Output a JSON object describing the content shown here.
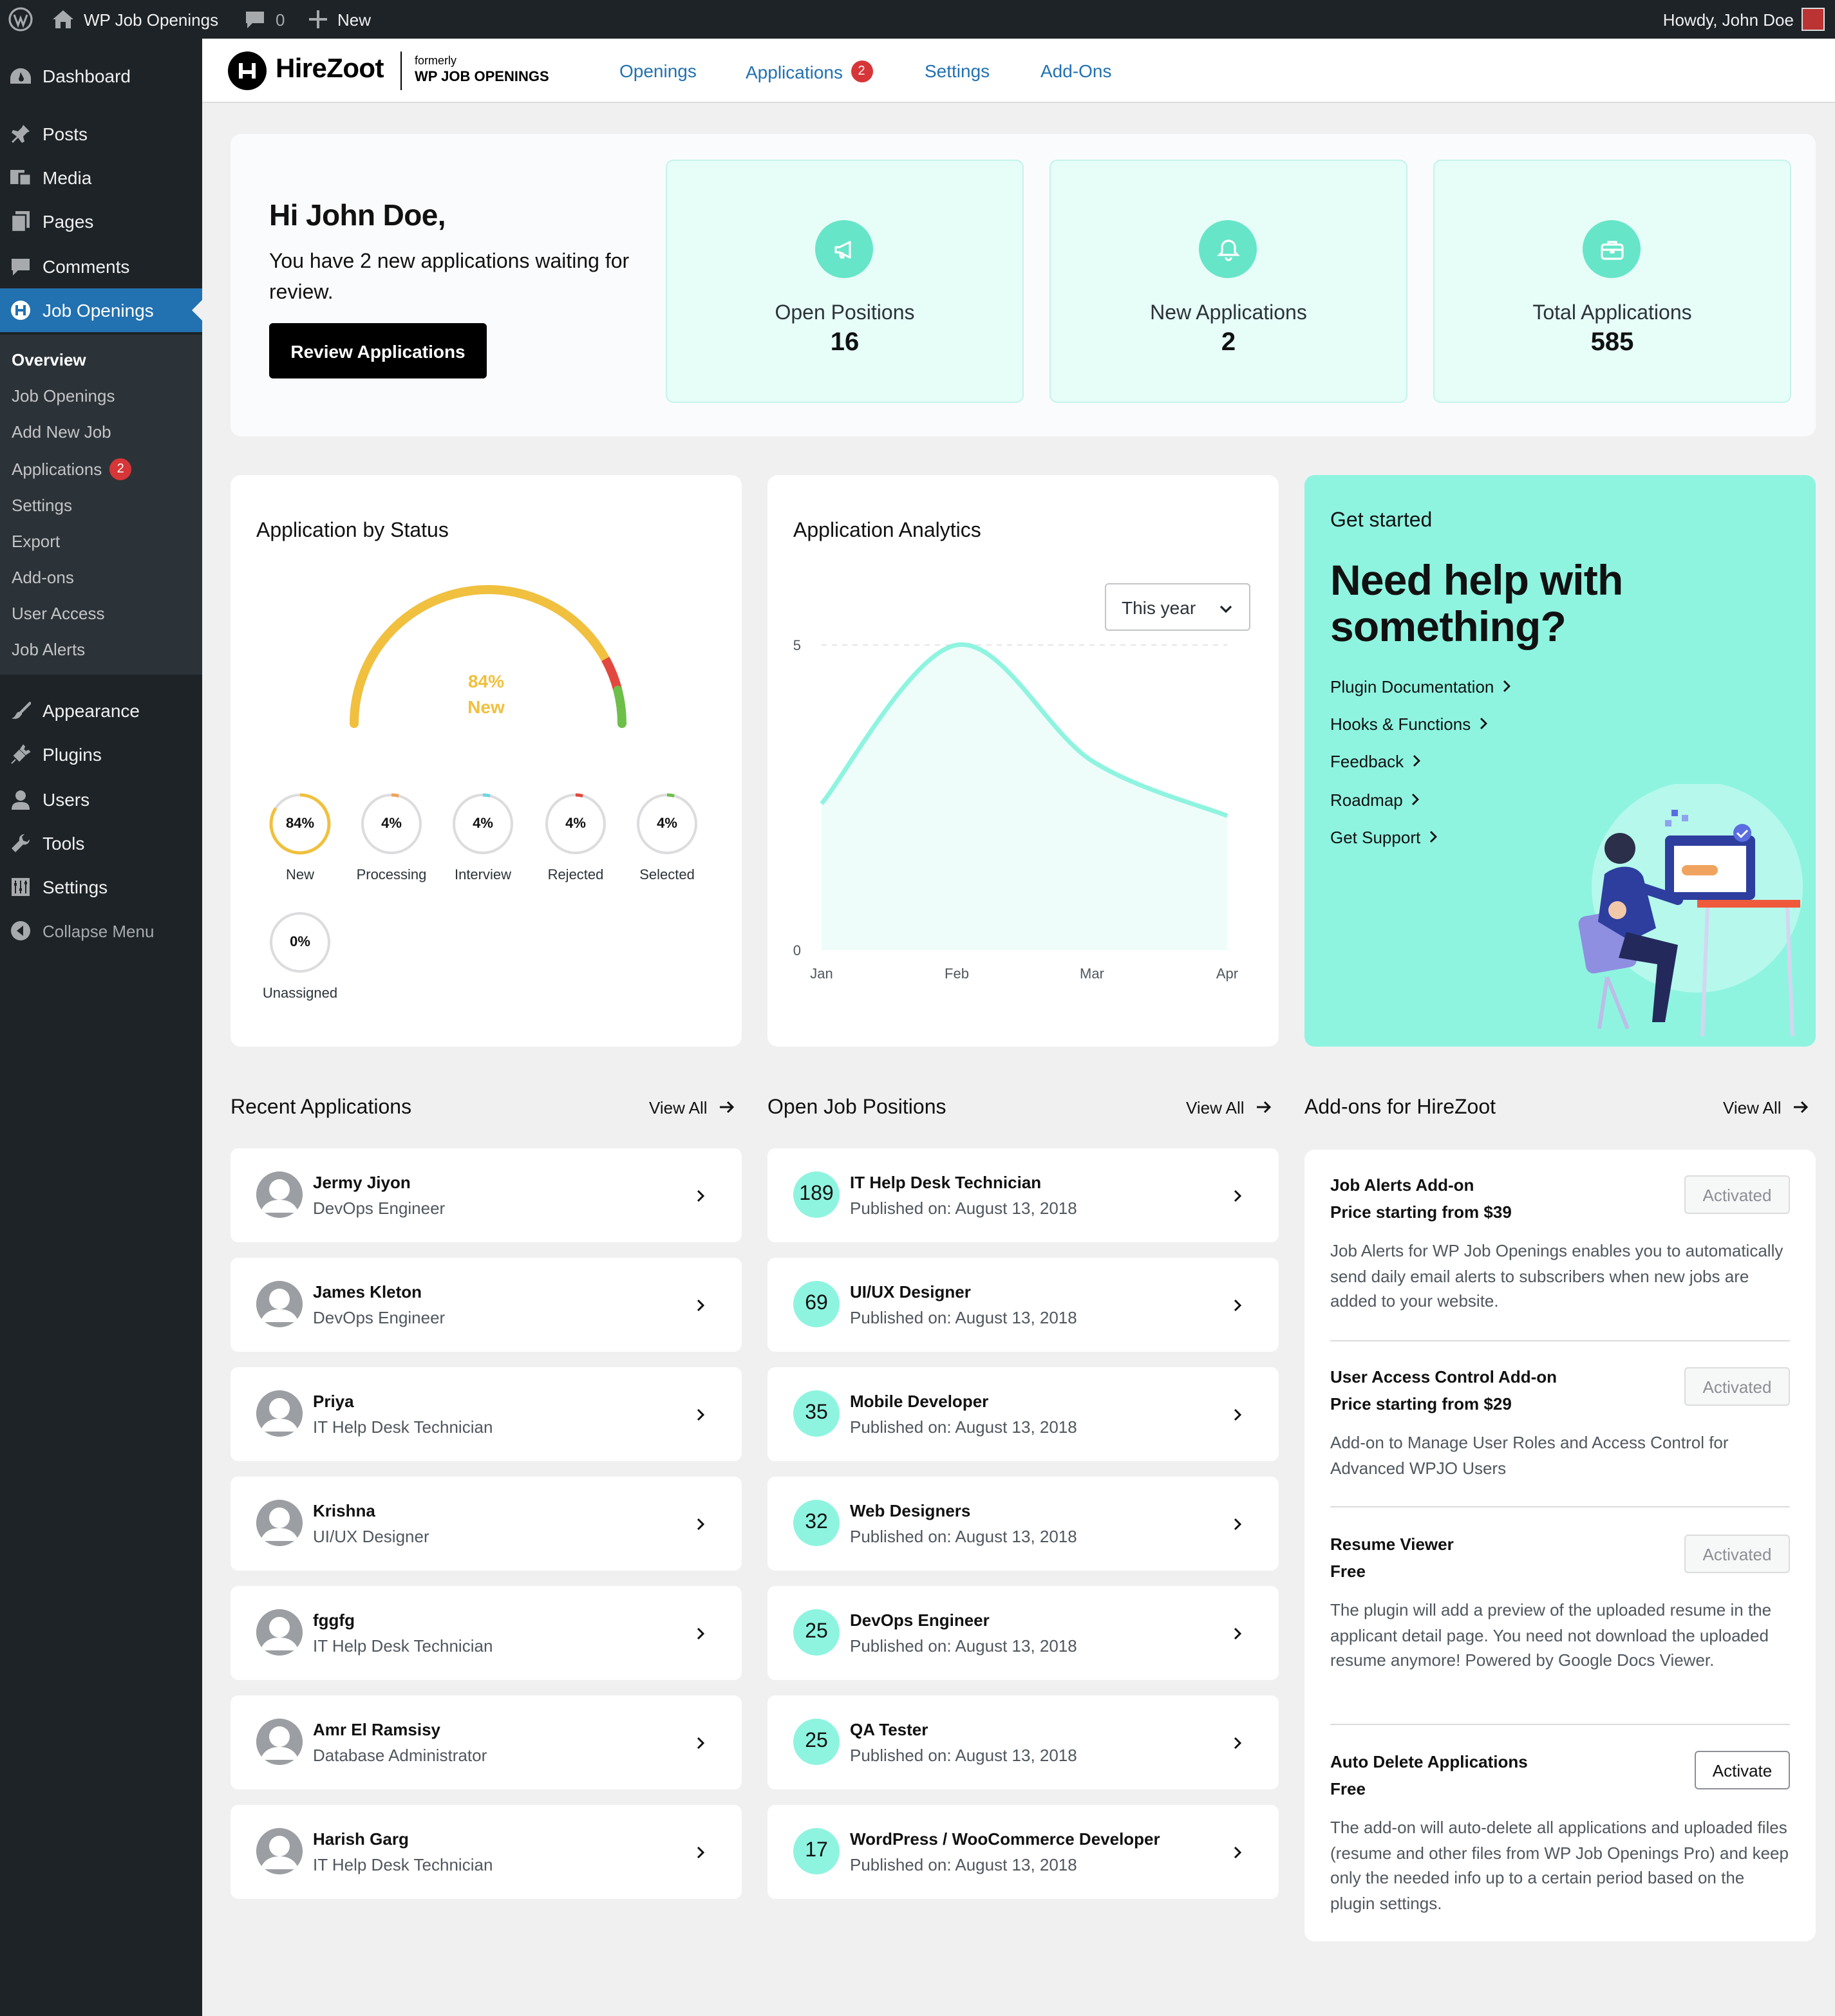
{
  "admin_bar": {
    "site_name": "WP Job Openings",
    "comments_count": "0",
    "new_label": "New",
    "howdy": "Howdy, John Doe"
  },
  "sidebar": {
    "items": [
      {
        "label": "Dashboard",
        "icon": "dashboard-icon"
      },
      {
        "label": "Posts",
        "icon": "pin-icon"
      },
      {
        "label": "Media",
        "icon": "media-icon"
      },
      {
        "label": "Pages",
        "icon": "pages-icon"
      },
      {
        "label": "Comments",
        "icon": "comment-icon"
      },
      {
        "label": "Job Openings",
        "icon": "hirezoot-icon"
      },
      {
        "label": "Appearance",
        "icon": "brush-icon"
      },
      {
        "label": "Plugins",
        "icon": "plug-icon"
      },
      {
        "label": "Users",
        "icon": "user-icon"
      },
      {
        "label": "Tools",
        "icon": "wrench-icon"
      },
      {
        "label": "Settings",
        "icon": "settings-icon"
      },
      {
        "label": "Collapse Menu",
        "icon": "collapse-icon"
      }
    ],
    "submenu": [
      {
        "label": "Overview"
      },
      {
        "label": "Job Openings"
      },
      {
        "label": "Add New Job"
      },
      {
        "label": "Applications",
        "badge": "2"
      },
      {
        "label": "Settings"
      },
      {
        "label": "Export"
      },
      {
        "label": "Add-ons"
      },
      {
        "label": "User Access"
      },
      {
        "label": "Job Alerts"
      }
    ]
  },
  "top_nav": {
    "logo": "HireZoot",
    "formerly": "formerly",
    "formerly_name": "WP JOB OPENINGS",
    "links": [
      {
        "label": "Openings"
      },
      {
        "label": "Applications",
        "badge": "2"
      },
      {
        "label": "Settings"
      },
      {
        "label": "Add-Ons"
      }
    ]
  },
  "hero": {
    "greeting": "Hi John Doe,",
    "message": "You have 2 new applications waiting for review.",
    "button": "Review Applications",
    "stats": [
      {
        "label": "Open Positions",
        "value": "16",
        "icon": "megaphone-icon"
      },
      {
        "label": "New Applications",
        "value": "2",
        "icon": "bell-icon"
      },
      {
        "label": "Total Applications",
        "value": "585",
        "icon": "briefcase-icon"
      }
    ]
  },
  "status_panel": {
    "title": "Application by Status",
    "gauge_percent": "84%",
    "gauge_label": "New",
    "gauge_fraction": 0.84,
    "rings": [
      {
        "value": "84%",
        "label": "New",
        "fraction": 0.84,
        "color": "#f0c03e"
      },
      {
        "value": "4%",
        "label": "Processing",
        "fraction": 0.04,
        "color": "#f0a35e"
      },
      {
        "value": "4%",
        "label": "Interview",
        "fraction": 0.04,
        "color": "#6ad7e5"
      },
      {
        "value": "4%",
        "label": "Rejected",
        "fraction": 0.04,
        "color": "#e2483d"
      },
      {
        "value": "4%",
        "label": "Selected",
        "fraction": 0.04,
        "color": "#6dbf4a"
      },
      {
        "value": "0%",
        "label": "Unassigned",
        "fraction": 0,
        "color": "#c3c4c7"
      }
    ]
  },
  "analytics": {
    "title": "Application Analytics",
    "period": "This year"
  },
  "chart_data": {
    "type": "area",
    "categories": [
      "Jan",
      "Feb",
      "Mar",
      "Apr"
    ],
    "values": [
      2.4,
      5,
      3.1,
      2.2
    ],
    "ylim": [
      0,
      5
    ],
    "yticks": [
      "5",
      "0"
    ],
    "colors": {
      "line": "#8ef4e0",
      "fill": "#eefdfa"
    }
  },
  "help": {
    "kicker": "Get started",
    "title": "Need help with something?",
    "links": [
      {
        "label": "Plugin Documentation"
      },
      {
        "label": "Hooks & Functions"
      },
      {
        "label": "Feedback"
      },
      {
        "label": "Roadmap"
      },
      {
        "label": "Get Support"
      }
    ]
  },
  "recent_applications": {
    "title": "Recent Applications",
    "view_all": "View All",
    "items": [
      {
        "name": "Jermy Jiyon",
        "role": "DevOps Engineer"
      },
      {
        "name": "James Kleton",
        "role": "DevOps Engineer"
      },
      {
        "name": "Priya",
        "role": "IT Help Desk Technician"
      },
      {
        "name": "Krishna",
        "role": "UI/UX Designer"
      },
      {
        "name": "fggfg",
        "role": "IT Help Desk Technician"
      },
      {
        "name": "Amr El Ramsisy",
        "role": "Database Administrator"
      },
      {
        "name": "Harish Garg",
        "role": "IT Help Desk Technician"
      }
    ]
  },
  "open_positions": {
    "title": "Open Job Positions",
    "view_all": "View All",
    "items": [
      {
        "count": "189",
        "title": "IT Help Desk Technician",
        "published": "Published on: August 13, 2018"
      },
      {
        "count": "69",
        "title": "UI/UX Designer",
        "published": "Published on: August 13, 2018"
      },
      {
        "count": "35",
        "title": "Mobile Developer",
        "published": "Published on: August 13, 2018"
      },
      {
        "count": "32",
        "title": "Web Designers",
        "published": "Published on: August 13, 2018"
      },
      {
        "count": "25",
        "title": "DevOps Engineer",
        "published": "Published on: August 13, 2018"
      },
      {
        "count": "25",
        "title": "QA Tester",
        "published": "Published on: August 13, 2018"
      },
      {
        "count": "17",
        "title": "WordPress / WooCommerce Developer",
        "published": "Published on: August 13, 2018"
      }
    ]
  },
  "addons": {
    "title": "Add-ons for HireZoot",
    "view_all": "View All",
    "items": [
      {
        "name": "Job Alerts Add-on",
        "price": "Price starting from $39",
        "button": "Activated",
        "desc": "Job Alerts for WP Job Openings enables you to automatically send daily email alerts to subscribers when new jobs are added to your website."
      },
      {
        "name": "User Access Control Add-on",
        "price": "Price starting from $29",
        "button": "Activated",
        "desc": "Add-on to Manage User Roles and Access Control for Advanced WPJO Users"
      },
      {
        "name": "Resume Viewer",
        "price": "Free",
        "button": "Activated",
        "desc": "The plugin will add a preview of the uploaded resume in the applicant detail page. You need not download the uploaded resume anymore! Powered by Google Docs Viewer."
      },
      {
        "name": "Auto Delete Applications",
        "price": "Free",
        "button": "Activate",
        "desc": "The add-on will auto-delete all applications and uploaded files (resume and other files from WP Job Openings Pro) and keep only the needed info up to a certain period based on the plugin settings."
      }
    ]
  }
}
